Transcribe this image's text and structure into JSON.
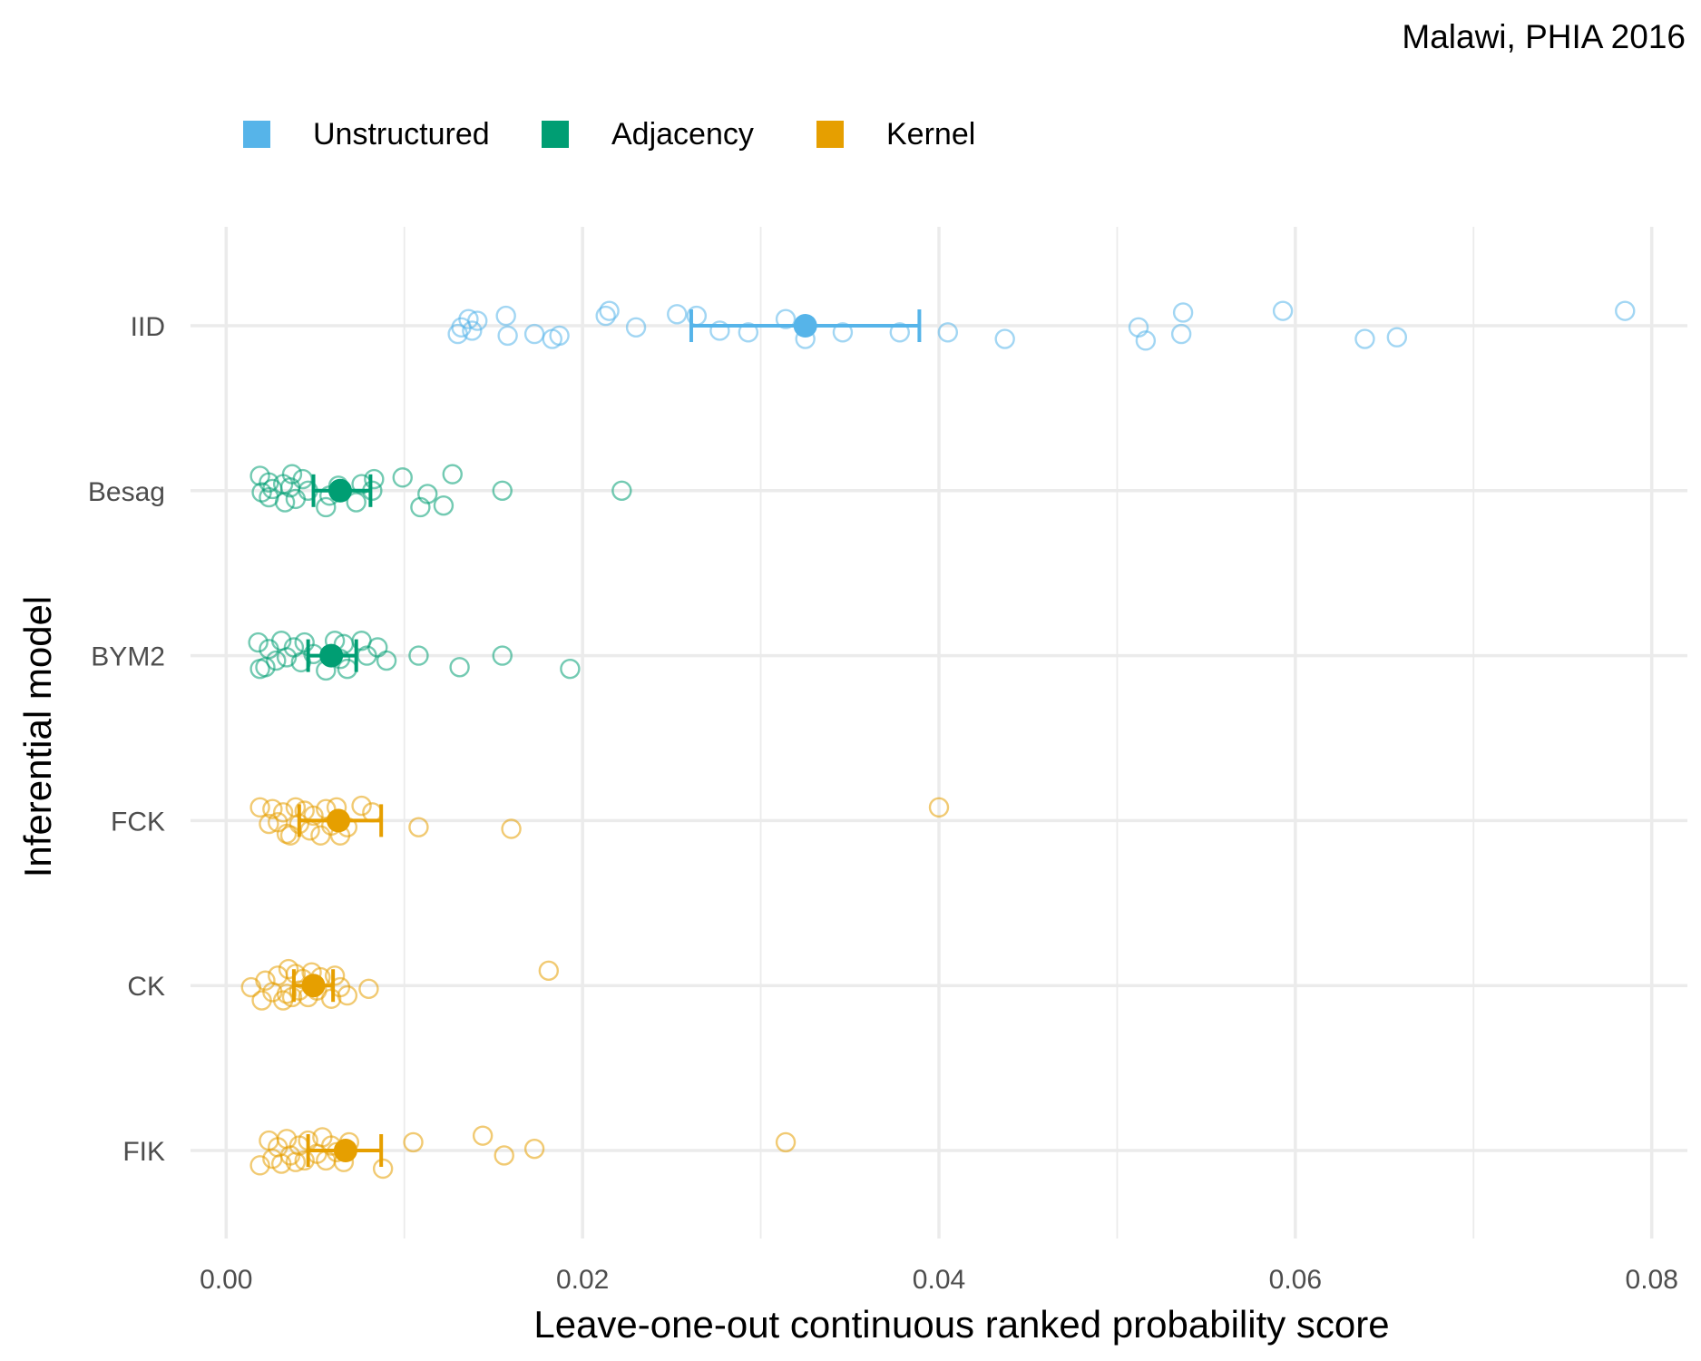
{
  "chart_data": {
    "type": "scatter",
    "title": "",
    "subtitle": "Malawi, PHIA 2016",
    "xlabel": "Leave-one-out continuous ranked probability score",
    "ylabel": "Inferential model",
    "xlim": [
      -0.002,
      0.082
    ],
    "x_ticks": [
      "0.00",
      "0.02",
      "0.04",
      "0.06",
      "0.08"
    ],
    "x_tick_values": [
      0,
      0.02,
      0.04,
      0.06,
      0.08
    ],
    "categories": [
      "IID",
      "Besag",
      "BYM2",
      "FCK",
      "CK",
      "FIK"
    ],
    "grid": true,
    "legend_position": "top-left",
    "legend": [
      {
        "name": "Unstructured",
        "color": "#56B4E9"
      },
      {
        "name": "Adjacency",
        "color": "#009E73"
      },
      {
        "name": "Kernel",
        "color": "#E69F00"
      }
    ],
    "series": [
      {
        "name": "IID",
        "group": "Unstructured",
        "color": "#56B4E9",
        "mean": 0.0325,
        "interval": [
          0.0261,
          0.0389
        ],
        "points": [
          {
            "x": 0.013,
            "j": 0.05
          },
          {
            "x": 0.0132,
            "j": 0.01
          },
          {
            "x": 0.0136,
            "j": -0.04
          },
          {
            "x": 0.0138,
            "j": 0.03
          },
          {
            "x": 0.0141,
            "j": -0.03
          },
          {
            "x": 0.0157,
            "j": -0.06
          },
          {
            "x": 0.0158,
            "j": 0.06
          },
          {
            "x": 0.0173,
            "j": 0.05
          },
          {
            "x": 0.0183,
            "j": 0.08
          },
          {
            "x": 0.0187,
            "j": 0.06
          },
          {
            "x": 0.0213,
            "j": -0.06
          },
          {
            "x": 0.0215,
            "j": -0.09
          },
          {
            "x": 0.023,
            "j": 0.01
          },
          {
            "x": 0.0253,
            "j": -0.07
          },
          {
            "x": 0.0264,
            "j": -0.06
          },
          {
            "x": 0.0277,
            "j": 0.03
          },
          {
            "x": 0.0293,
            "j": 0.04
          },
          {
            "x": 0.0314,
            "j": -0.04
          },
          {
            "x": 0.0325,
            "j": 0.08
          },
          {
            "x": 0.0346,
            "j": 0.04
          },
          {
            "x": 0.0378,
            "j": 0.04
          },
          {
            "x": 0.0405,
            "j": 0.04
          },
          {
            "x": 0.0437,
            "j": 0.08
          },
          {
            "x": 0.0512,
            "j": 0.01
          },
          {
            "x": 0.0516,
            "j": 0.09
          },
          {
            "x": 0.0536,
            "j": 0.05
          },
          {
            "x": 0.0537,
            "j": -0.08
          },
          {
            "x": 0.0593,
            "j": -0.09
          },
          {
            "x": 0.0639,
            "j": 0.08
          },
          {
            "x": 0.0657,
            "j": 0.07
          },
          {
            "x": 0.0785,
            "j": -0.09
          }
        ]
      },
      {
        "name": "Besag",
        "group": "Adjacency",
        "color": "#009E73",
        "mean": 0.0064,
        "interval": [
          0.0049,
          0.0081
        ],
        "points": [
          {
            "x": 0.0019,
            "j": -0.09
          },
          {
            "x": 0.002,
            "j": 0.01
          },
          {
            "x": 0.0024,
            "j": -0.05
          },
          {
            "x": 0.0024,
            "j": 0.04
          },
          {
            "x": 0.0026,
            "j": -0.01
          },
          {
            "x": 0.0032,
            "j": -0.04
          },
          {
            "x": 0.0033,
            "j": 0.07
          },
          {
            "x": 0.0036,
            "j": -0.02
          },
          {
            "x": 0.0037,
            "j": -0.1
          },
          {
            "x": 0.0039,
            "j": 0.05
          },
          {
            "x": 0.0043,
            "j": -0.07
          },
          {
            "x": 0.0046,
            "j": 0.0
          },
          {
            "x": 0.0056,
            "j": 0.1
          },
          {
            "x": 0.0058,
            "j": 0.03
          },
          {
            "x": 0.0063,
            "j": -0.03
          },
          {
            "x": 0.0073,
            "j": 0.07
          },
          {
            "x": 0.0076,
            "j": -0.04
          },
          {
            "x": 0.0082,
            "j": 0.0
          },
          {
            "x": 0.0083,
            "j": -0.07
          },
          {
            "x": 0.0099,
            "j": -0.08
          },
          {
            "x": 0.0109,
            "j": 0.1
          },
          {
            "x": 0.0113,
            "j": 0.02
          },
          {
            "x": 0.0122,
            "j": 0.09
          },
          {
            "x": 0.0127,
            "j": -0.1
          },
          {
            "x": 0.0155,
            "j": 0.0
          },
          {
            "x": 0.0222,
            "j": 0.0
          }
        ]
      },
      {
        "name": "BYM2",
        "group": "Adjacency",
        "color": "#009E73",
        "mean": 0.0059,
        "interval": [
          0.0046,
          0.0073
        ],
        "points": [
          {
            "x": 0.0018,
            "j": -0.08
          },
          {
            "x": 0.0019,
            "j": 0.08
          },
          {
            "x": 0.0022,
            "j": 0.07
          },
          {
            "x": 0.0024,
            "j": -0.04
          },
          {
            "x": 0.0028,
            "j": 0.03
          },
          {
            "x": 0.0031,
            "j": -0.09
          },
          {
            "x": 0.0034,
            "j": 0.01
          },
          {
            "x": 0.0038,
            "j": -0.05
          },
          {
            "x": 0.0042,
            "j": 0.04
          },
          {
            "x": 0.0044,
            "j": -0.08
          },
          {
            "x": 0.0049,
            "j": -0.01
          },
          {
            "x": 0.0056,
            "j": 0.09
          },
          {
            "x": 0.0061,
            "j": -0.09
          },
          {
            "x": 0.0064,
            "j": 0.02
          },
          {
            "x": 0.0066,
            "j": -0.07
          },
          {
            "x": 0.0068,
            "j": 0.08
          },
          {
            "x": 0.0076,
            "j": -0.09
          },
          {
            "x": 0.0079,
            "j": 0.0
          },
          {
            "x": 0.0085,
            "j": -0.05
          },
          {
            "x": 0.009,
            "j": 0.03
          },
          {
            "x": 0.0108,
            "j": 0.0
          },
          {
            "x": 0.0131,
            "j": 0.07
          },
          {
            "x": 0.0155,
            "j": 0.0
          },
          {
            "x": 0.0193,
            "j": 0.08
          }
        ]
      },
      {
        "name": "FCK",
        "group": "Kernel",
        "color": "#E69F00",
        "mean": 0.0063,
        "interval": [
          0.0041,
          0.0087
        ],
        "points": [
          {
            "x": 0.0019,
            "j": -0.08
          },
          {
            "x": 0.0024,
            "j": 0.02
          },
          {
            "x": 0.0026,
            "j": -0.07
          },
          {
            "x": 0.0029,
            "j": 0.01
          },
          {
            "x": 0.0032,
            "j": -0.05
          },
          {
            "x": 0.0034,
            "j": 0.08
          },
          {
            "x": 0.0036,
            "j": 0.09
          },
          {
            "x": 0.0039,
            "j": -0.08
          },
          {
            "x": 0.0041,
            "j": 0.02
          },
          {
            "x": 0.0044,
            "j": -0.06
          },
          {
            "x": 0.0047,
            "j": 0.06
          },
          {
            "x": 0.0049,
            "j": -0.03
          },
          {
            "x": 0.0053,
            "j": 0.09
          },
          {
            "x": 0.0056,
            "j": -0.07
          },
          {
            "x": 0.0059,
            "j": 0.03
          },
          {
            "x": 0.0062,
            "j": -0.08
          },
          {
            "x": 0.0064,
            "j": 0.09
          },
          {
            "x": 0.0068,
            "j": 0.04
          },
          {
            "x": 0.0076,
            "j": -0.09
          },
          {
            "x": 0.0082,
            "j": -0.05
          },
          {
            "x": 0.0108,
            "j": 0.04
          },
          {
            "x": 0.016,
            "j": 0.05
          },
          {
            "x": 0.04,
            "j": -0.08
          }
        ]
      },
      {
        "name": "CK",
        "group": "Kernel",
        "color": "#E69F00",
        "mean": 0.0049,
        "interval": [
          0.0038,
          0.006
        ],
        "points": [
          {
            "x": 0.0014,
            "j": 0.01
          },
          {
            "x": 0.002,
            "j": 0.09
          },
          {
            "x": 0.0022,
            "j": -0.03
          },
          {
            "x": 0.0026,
            "j": 0.04
          },
          {
            "x": 0.0029,
            "j": -0.06
          },
          {
            "x": 0.0032,
            "j": 0.09
          },
          {
            "x": 0.0034,
            "j": 0.05
          },
          {
            "x": 0.0035,
            "j": -0.1
          },
          {
            "x": 0.0037,
            "j": 0.07
          },
          {
            "x": 0.0039,
            "j": -0.07
          },
          {
            "x": 0.0041,
            "j": 0.03
          },
          {
            "x": 0.0043,
            "j": -0.04
          },
          {
            "x": 0.0046,
            "j": 0.07
          },
          {
            "x": 0.0048,
            "j": -0.08
          },
          {
            "x": 0.0051,
            "j": 0.03
          },
          {
            "x": 0.0053,
            "j": -0.05
          },
          {
            "x": 0.0059,
            "j": 0.08
          },
          {
            "x": 0.0061,
            "j": -0.06
          },
          {
            "x": 0.0064,
            "j": 0.01
          },
          {
            "x": 0.0068,
            "j": 0.06
          },
          {
            "x": 0.008,
            "j": 0.02
          },
          {
            "x": 0.0181,
            "j": -0.09
          }
        ]
      },
      {
        "name": "FIK",
        "group": "Kernel",
        "color": "#E69F00",
        "mean": 0.0067,
        "interval": [
          0.0046,
          0.0087
        ],
        "points": [
          {
            "x": 0.0019,
            "j": 0.09
          },
          {
            "x": 0.0024,
            "j": -0.06
          },
          {
            "x": 0.0026,
            "j": 0.05
          },
          {
            "x": 0.0029,
            "j": -0.02
          },
          {
            "x": 0.0031,
            "j": 0.08
          },
          {
            "x": 0.0034,
            "j": -0.07
          },
          {
            "x": 0.0036,
            "j": 0.03
          },
          {
            "x": 0.0039,
            "j": 0.07
          },
          {
            "x": 0.0041,
            "j": -0.03
          },
          {
            "x": 0.0044,
            "j": 0.06
          },
          {
            "x": 0.0046,
            "j": -0.06
          },
          {
            "x": 0.0051,
            "j": 0.02
          },
          {
            "x": 0.0054,
            "j": -0.08
          },
          {
            "x": 0.0056,
            "j": 0.06
          },
          {
            "x": 0.0059,
            "j": -0.03
          },
          {
            "x": 0.0062,
            "j": 0.01
          },
          {
            "x": 0.0066,
            "j": 0.07
          },
          {
            "x": 0.0069,
            "j": -0.05
          },
          {
            "x": 0.0088,
            "j": 0.11
          },
          {
            "x": 0.0105,
            "j": -0.05
          },
          {
            "x": 0.0144,
            "j": -0.09
          },
          {
            "x": 0.0156,
            "j": 0.03
          },
          {
            "x": 0.0173,
            "j": -0.01
          },
          {
            "x": 0.0314,
            "j": -0.05
          }
        ]
      }
    ]
  }
}
